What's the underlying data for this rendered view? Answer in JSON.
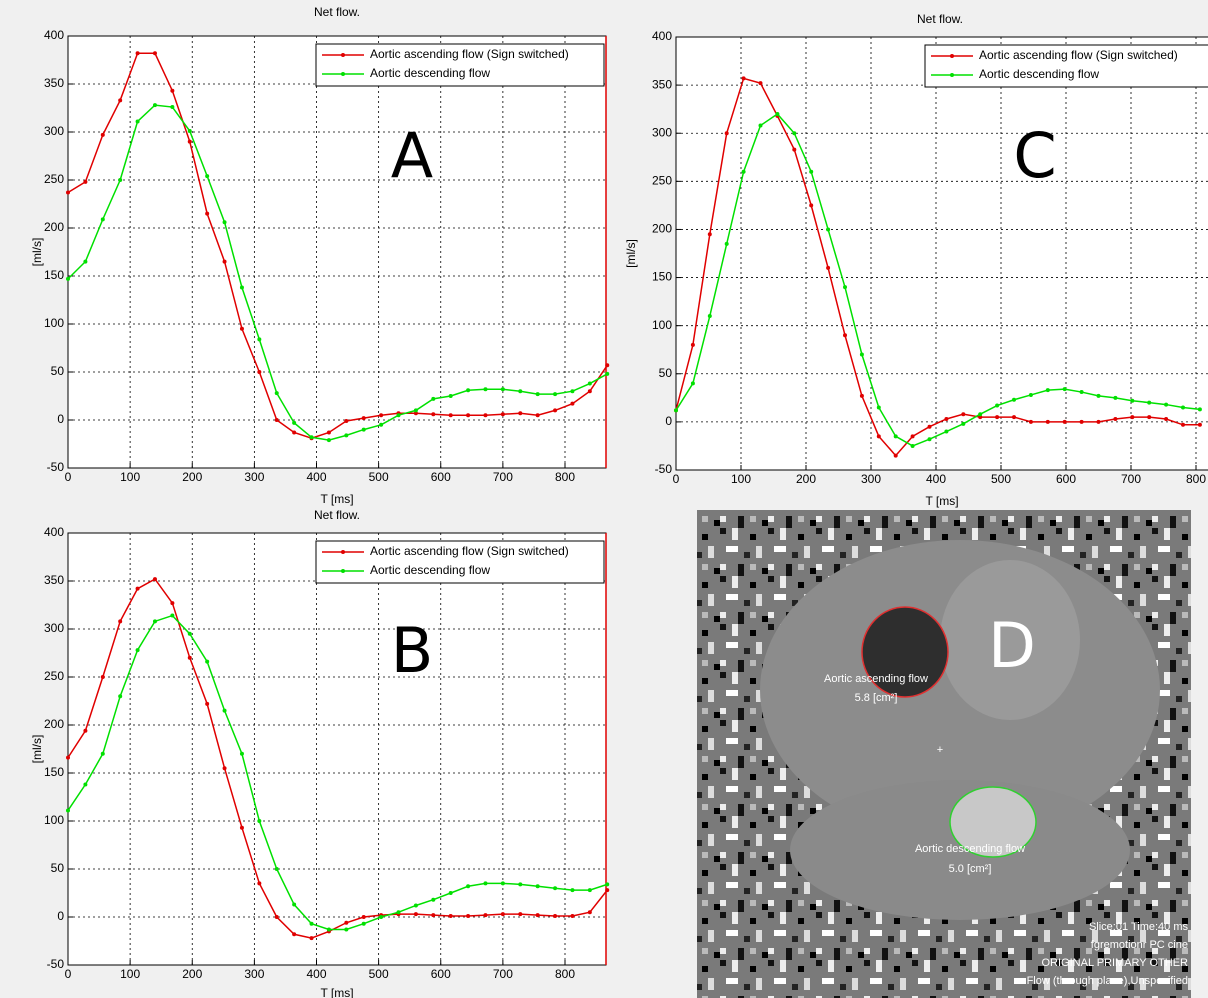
{
  "chart_data": [
    {
      "type": "line",
      "title": "Net flow.",
      "annotation": "A",
      "xlabel": "T [ms]",
      "ylabel": "[ml/s]",
      "x": [
        0,
        28,
        56,
        84,
        112,
        140,
        168,
        196,
        224,
        252,
        280,
        308,
        336,
        364,
        392,
        420,
        448,
        476,
        504,
        532,
        560,
        588,
        616,
        644,
        672,
        700,
        728,
        756,
        784,
        812,
        840,
        868
      ],
      "series": [
        {
          "name": "Aortic ascending flow (Sign switched)",
          "color": "#e00000",
          "values": [
            237,
            248,
            297,
            333,
            382,
            382,
            343,
            290,
            215,
            165,
            95,
            50,
            0,
            -13,
            -19,
            -13,
            -1,
            2,
            5,
            7,
            7,
            6,
            5,
            5,
            5,
            6,
            7,
            5,
            10,
            17,
            30,
            57
          ]
        },
        {
          "name": "Aortic descending flow",
          "color": "#00e000",
          "values": [
            147,
            165,
            209,
            250,
            311,
            328,
            326,
            301,
            254,
            206,
            138,
            84,
            28,
            -3,
            -18,
            -21,
            -16,
            -10,
            -5,
            5,
            10,
            22,
            25,
            31,
            32,
            32,
            30,
            27,
            27,
            30,
            38,
            48
          ]
        }
      ],
      "xlim": [
        0,
        866
      ],
      "ylim": [
        -50,
        400
      ],
      "xticks": [
        0,
        100,
        200,
        300,
        400,
        500,
        600,
        700,
        800
      ],
      "yticks": [
        -50,
        0,
        50,
        100,
        150,
        200,
        250,
        300,
        350,
        400
      ],
      "grid": true,
      "legend": "upper right"
    },
    {
      "type": "line",
      "title": "Net flow.",
      "annotation": "B",
      "xlabel": "T [ms]",
      "ylabel": "[ml/s]",
      "x": [
        0,
        28,
        56,
        84,
        112,
        140,
        168,
        196,
        224,
        252,
        280,
        308,
        336,
        364,
        392,
        420,
        448,
        476,
        504,
        532,
        560,
        588,
        616,
        644,
        672,
        700,
        728,
        756,
        784,
        812,
        840,
        868
      ],
      "series": [
        {
          "name": "Aortic ascending flow (Sign switched)",
          "color": "#e00000",
          "values": [
            166,
            194,
            250,
            308,
            342,
            352,
            327,
            270,
            222,
            155,
            93,
            35,
            0,
            -18,
            -22,
            -15,
            -6,
            0,
            2,
            3,
            3,
            2,
            1,
            1,
            2,
            3,
            3,
            2,
            1,
            1,
            5,
            28
          ]
        },
        {
          "name": "Aortic descending flow",
          "color": "#00e000",
          "values": [
            111,
            138,
            170,
            230,
            278,
            308,
            314,
            295,
            266,
            215,
            170,
            100,
            50,
            13,
            -7,
            -13,
            -13,
            -7,
            0,
            5,
            12,
            18,
            25,
            32,
            35,
            35,
            34,
            32,
            30,
            28,
            28,
            34
          ]
        }
      ],
      "xlim": [
        0,
        866
      ],
      "ylim": [
        -50,
        400
      ],
      "xticks": [
        0,
        100,
        200,
        300,
        400,
        500,
        600,
        700,
        800
      ],
      "yticks": [
        -50,
        0,
        50,
        100,
        150,
        200,
        250,
        300,
        350,
        400
      ],
      "grid": true,
      "legend": "upper right"
    },
    {
      "type": "line",
      "title": "Net flow.",
      "annotation": "C",
      "xlabel": "T [ms]",
      "ylabel": "[ml/s]",
      "x": [
        0,
        26,
        52,
        78,
        104,
        130,
        156,
        182,
        208,
        234,
        260,
        286,
        312,
        338,
        364,
        390,
        416,
        442,
        468,
        494,
        520,
        546,
        572,
        598,
        624,
        650,
        676,
        702,
        728,
        754,
        780,
        806
      ],
      "series": [
        {
          "name": "Aortic ascending flow (Sign switched)",
          "color": "#e00000",
          "values": [
            12,
            80,
            195,
            300,
            357,
            352,
            318,
            283,
            225,
            160,
            90,
            27,
            -15,
            -35,
            -15,
            -5,
            3,
            8,
            5,
            5,
            5,
            0,
            0,
            0,
            0,
            0,
            3,
            5,
            5,
            3,
            -3,
            -3
          ]
        },
        {
          "name": "Aortic descending flow",
          "color": "#00e000",
          "values": [
            12,
            40,
            110,
            185,
            260,
            308,
            320,
            300,
            260,
            200,
            140,
            70,
            15,
            -15,
            -25,
            -18,
            -10,
            -2,
            8,
            17,
            23,
            28,
            33,
            34,
            31,
            27,
            25,
            22,
            20,
            18,
            15,
            13
          ]
        }
      ],
      "xlim": [
        0,
        820
      ],
      "ylim": [
        -50,
        400
      ],
      "xticks": [
        0,
        100,
        200,
        300,
        400,
        500,
        600,
        700,
        800
      ],
      "yticks": [
        -50,
        0,
        50,
        100,
        150,
        200,
        250,
        300,
        350,
        400
      ],
      "grid": true,
      "legend": "upper right"
    }
  ],
  "image_panel": {
    "annotation": "D",
    "roi_1_label": "Aortic ascending flow",
    "roi_1_area": "5.8 [cm²]",
    "roi_2_label": "Aortic descending flow",
    "roi_2_area": "5.0 [cm²]",
    "info": [
      "Slice:01 Time:40 ms",
      "fgremotionr PC cine",
      "ORIGINAL PRIMARY OTHER",
      "Flow (through plane),Unspecified"
    ]
  }
}
